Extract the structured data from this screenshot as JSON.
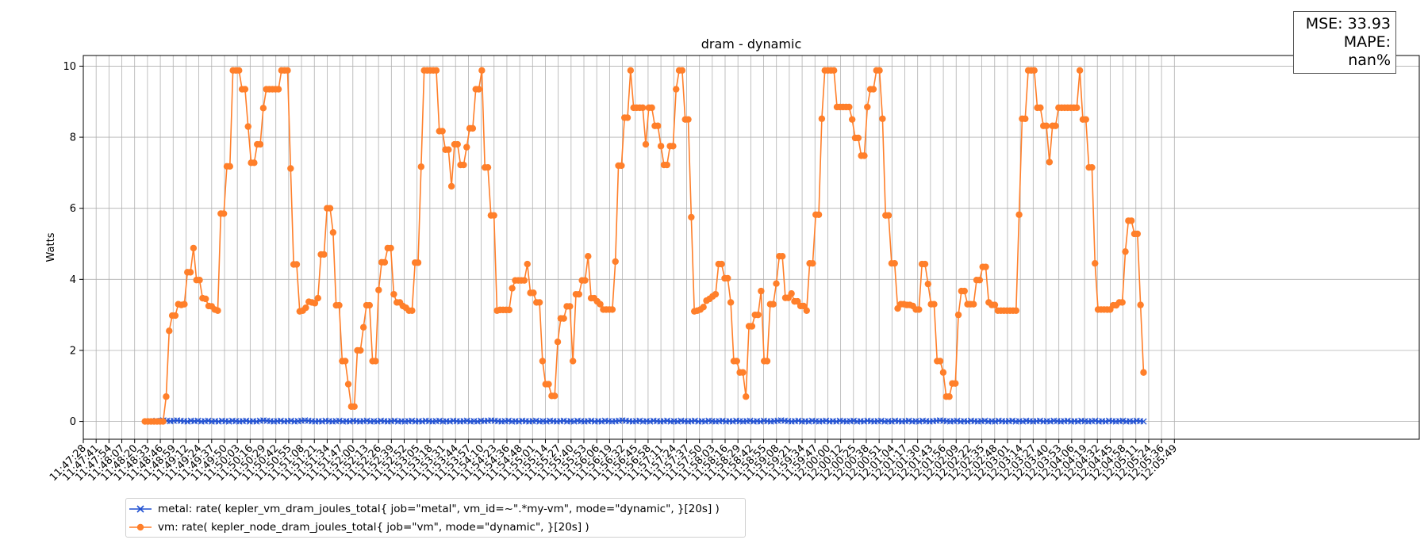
{
  "chart_data": {
    "type": "line",
    "title": "dram - dynamic",
    "xlabel": "",
    "ylabel": "Watts",
    "ylim": [
      -0.5,
      10.3
    ],
    "yticks": [
      0,
      2,
      4,
      6,
      8,
      10
    ],
    "grid": true,
    "legend_position": "bottom-left",
    "x_tick_labels": [
      "11:47:28",
      "11:47:41",
      "11:47:54",
      "11:48:07",
      "11:48:20",
      "11:48:33",
      "11:48:46",
      "11:48:59",
      "11:49:12",
      "11:49:24",
      "11:49:37",
      "11:49:50",
      "11:50:03",
      "11:50:16",
      "11:50:29",
      "11:50:42",
      "11:50:55",
      "11:51:08",
      "11:51:21",
      "11:51:34",
      "11:51:47",
      "11:52:00",
      "11:52:13",
      "11:52:26",
      "11:52:39",
      "11:52:52",
      "11:53:05",
      "11:53:18",
      "11:53:31",
      "11:53:44",
      "11:53:57",
      "11:54:10",
      "11:54:23",
      "11:54:36",
      "11:54:48",
      "11:55:01",
      "11:55:14",
      "11:55:27",
      "11:55:40",
      "11:55:53",
      "11:56:06",
      "11:56:19",
      "11:56:32",
      "11:56:45",
      "11:56:58",
      "11:57:11",
      "11:57:24",
      "11:57:37",
      "11:57:50",
      "11:58:03",
      "11:58:16",
      "11:58:29",
      "11:58:42",
      "11:58:55",
      "11:59:08",
      "11:59:21",
      "11:59:34",
      "11:59:47",
      "12:00:00",
      "12:00:12",
      "12:00:25",
      "12:00:38",
      "12:00:51",
      "12:01:04",
      "12:01:17",
      "12:01:30",
      "12:01:43",
      "12:01:56",
      "12:02:09",
      "12:02:22",
      "12:02:35",
      "12:02:48",
      "12:03:01",
      "12:03:14",
      "12:03:27",
      "12:03:40",
      "12:03:53",
      "12:04:06",
      "12:04:19",
      "12:04:32",
      "12:04:45",
      "12:04:58",
      "12:05:11",
      "12:05:24",
      "12:05:36",
      "12:05:49"
    ],
    "series": [
      {
        "name": "metal: rate( kepler_vm_dram_joules_total{ job=\"metal\", vm_id=~\".*my-vm\", mode=\"dynamic\", }[20s] )",
        "color": "#1f4fd1",
        "marker": "x",
        "start_tick": 5.7,
        "end_tick": 82.6,
        "values": [
          0.02,
          0.01,
          0.03,
          0.02,
          0.01,
          0.02,
          0.03,
          0.02,
          0.01,
          0.0,
          0.02,
          0.01,
          0.02,
          0.0,
          0.01,
          0.02,
          0.0,
          0.01,
          0.0,
          0.02,
          0.01,
          0.0,
          0.02,
          0.01,
          0.0,
          0.01,
          0.02,
          0.0,
          0.01,
          0.0,
          0.02,
          0.03,
          0.02,
          0.01,
          0.0,
          0.01,
          0.02,
          0.0,
          0.01,
          0.02,
          0.0,
          0.01,
          0.02,
          0.03,
          0.02,
          0.01,
          0.0,
          0.01,
          0.0,
          0.02,
          0.01,
          0.0,
          0.01,
          0.02,
          0.0,
          0.01,
          0.0,
          0.02,
          0.01,
          0.0,
          0.01,
          0.02,
          0.0,
          0.01,
          0.0,
          0.02,
          0.01,
          0.0,
          0.01,
          0.02,
          0.0,
          0.01,
          0.0,
          0.01,
          0.02,
          0.0,
          0.01,
          0.0,
          0.02,
          0.01,
          0.0,
          0.01,
          0.02,
          0.0,
          0.01,
          0.0,
          0.02,
          0.01,
          0.0,
          0.01,
          0.02,
          0.0,
          0.01,
          0.0,
          0.02,
          0.01,
          0.02,
          0.03,
          0.02,
          0.01,
          0.0,
          0.01,
          0.02,
          0.0,
          0.01,
          0.0,
          0.02,
          0.01,
          0.0,
          0.01,
          0.02,
          0.0,
          0.01,
          0.0,
          0.02,
          0.01,
          0.0,
          0.01,
          0.02,
          0.0,
          0.01,
          0.0,
          0.02,
          0.01,
          0.0,
          0.01,
          0.02,
          0.0,
          0.01,
          0.0,
          0.02,
          0.01,
          0.0,
          0.01,
          0.02,
          0.03,
          0.02,
          0.01,
          0.0,
          0.01,
          0.02,
          0.0,
          0.01,
          0.0,
          0.02,
          0.01,
          0.0,
          0.01,
          0.02,
          0.0,
          0.01,
          0.0,
          0.02,
          0.01,
          0.0,
          0.01,
          0.02,
          0.0,
          0.01,
          0.0,
          0.02,
          0.01,
          0.0,
          0.01,
          0.02,
          0.0,
          0.01,
          0.0,
          0.02,
          0.01,
          0.0,
          0.01,
          0.02,
          0.0,
          0.01,
          0.0,
          0.02,
          0.01,
          0.0,
          0.01,
          0.02,
          0.03,
          0.02,
          0.01,
          0.0,
          0.01,
          0.02,
          0.0,
          0.01,
          0.0,
          0.02,
          0.01,
          0.0,
          0.01,
          0.02,
          0.0,
          0.01,
          0.0,
          0.02,
          0.01,
          0.0,
          0.01,
          0.02,
          0.0,
          0.01,
          0.0,
          0.02,
          0.01,
          0.0,
          0.01,
          0.02,
          0.0,
          0.01,
          0.0,
          0.02,
          0.01,
          0.0,
          0.01,
          0.02,
          0.0,
          0.01,
          0.0,
          0.02,
          0.01,
          0.0,
          0.01,
          0.02,
          0.03,
          0.02,
          0.01,
          0.0,
          0.01,
          0.02,
          0.0,
          0.01,
          0.0,
          0.02,
          0.01,
          0.0,
          0.01,
          0.02,
          0.0,
          0.01,
          0.0,
          0.02,
          0.01,
          0.0,
          0.01,
          0.02,
          0.0,
          0.01,
          0.0,
          0.02,
          0.01,
          0.0,
          0.01,
          0.02,
          0.0,
          0.01,
          0.0,
          0.02,
          0.01,
          0.0,
          0.01,
          0.02,
          0.0,
          0.01,
          0.0,
          0.02,
          0.01,
          0.0,
          0.01,
          0.02,
          0.0,
          0.01,
          0.0,
          0.02,
          0.01,
          0.0,
          0.01,
          0.02,
          0.0,
          0.01,
          0.0,
          0.02,
          0.01,
          0.0
        ]
      },
      {
        "name": "vm: rate( kepler_node_dram_joules_total{ job=\"vm\", mode=\"dynamic\", }[20s] )",
        "color": "#ff7f2a",
        "marker": "o",
        "start_tick": 4.8,
        "end_tick": 82.6,
        "values": [
          0,
          0,
          0,
          0,
          0,
          0,
          0,
          0.7,
          2.55,
          2.98,
          2.98,
          3.3,
          3.28,
          3.3,
          4.2,
          4.2,
          4.88,
          3.98,
          3.98,
          3.47,
          3.45,
          3.25,
          3.24,
          3.15,
          3.12,
          5.85,
          5.85,
          7.18,
          7.18,
          9.88,
          9.88,
          9.88,
          9.35,
          9.35,
          8.3,
          7.28,
          7.28,
          7.8,
          7.8,
          8.82,
          9.35,
          9.35,
          9.35,
          9.35,
          9.35,
          9.88,
          9.88,
          9.88,
          7.12,
          4.42,
          4.42,
          3.1,
          3.12,
          3.2,
          3.37,
          3.35,
          3.33,
          3.47,
          4.7,
          4.7,
          6.0,
          6.0,
          5.32,
          3.27,
          3.27,
          1.7,
          1.7,
          1.05,
          0.42,
          0.42,
          2.0,
          2.0,
          2.65,
          3.27,
          3.27,
          1.7,
          1.7,
          3.7,
          4.48,
          4.48,
          4.88,
          4.88,
          3.58,
          3.35,
          3.35,
          3.25,
          3.2,
          3.12,
          3.12,
          4.47,
          4.47,
          7.17,
          9.88,
          9.88,
          9.88,
          9.88,
          9.88,
          8.17,
          8.17,
          7.65,
          7.65,
          6.62,
          7.8,
          7.8,
          7.22,
          7.22,
          7.72,
          8.25,
          8.25,
          9.35,
          9.35,
          9.88,
          7.15,
          7.15,
          5.8,
          5.8,
          3.12,
          3.14,
          3.14,
          3.14,
          3.14,
          3.75,
          3.97,
          3.97,
          3.97,
          3.97,
          4.43,
          3.62,
          3.62,
          3.35,
          3.35,
          1.7,
          1.05,
          1.05,
          0.72,
          0.72,
          2.24,
          2.9,
          2.9,
          3.24,
          3.24,
          1.7,
          3.58,
          3.58,
          3.97,
          3.97,
          4.65,
          3.47,
          3.47,
          3.38,
          3.3,
          3.15,
          3.15,
          3.15,
          3.15,
          4.5,
          7.2,
          7.2,
          8.55,
          8.55,
          9.88,
          8.83,
          8.83,
          8.83,
          8.83,
          7.8,
          8.83,
          8.83,
          8.32,
          8.32,
          7.75,
          7.22,
          7.22,
          7.75,
          7.75,
          9.35,
          9.88,
          9.88,
          8.5,
          8.5,
          5.75,
          3.1,
          3.12,
          3.15,
          3.22,
          3.4,
          3.45,
          3.52,
          3.58,
          4.43,
          4.43,
          4.03,
          4.03,
          3.35,
          1.7,
          1.7,
          1.38,
          1.38,
          0.7,
          2.68,
          2.68,
          3.0,
          3.0,
          3.67,
          1.7,
          1.7,
          3.3,
          3.3,
          3.88,
          4.65,
          4.65,
          3.48,
          3.48,
          3.6,
          3.38,
          3.38,
          3.25,
          3.25,
          3.12,
          4.45,
          4.45,
          5.82,
          5.82,
          8.52,
          9.88,
          9.88,
          9.88,
          9.88,
          8.85,
          8.85,
          8.85,
          8.85,
          8.85,
          8.5,
          7.98,
          7.98,
          7.48,
          7.48,
          8.85,
          9.35,
          9.35,
          9.88,
          9.88,
          8.52,
          5.8,
          5.8,
          4.45,
          4.45,
          3.18,
          3.3,
          3.3,
          3.28,
          3.28,
          3.25,
          3.15,
          3.15,
          4.43,
          4.43,
          3.87,
          3.3,
          3.3,
          1.7,
          1.7,
          1.38,
          0.7,
          0.7,
          1.07,
          1.07,
          3.0,
          3.67,
          3.67,
          3.3,
          3.3,
          3.3,
          3.98,
          3.98,
          4.35,
          4.35,
          3.35,
          3.28,
          3.28,
          3.12,
          3.12,
          3.12,
          3.12,
          3.12,
          3.12,
          3.12,
          5.82,
          8.52,
          8.52,
          9.88,
          9.88,
          9.88,
          8.83,
          8.83,
          8.32,
          8.32,
          7.3,
          8.32,
          8.32,
          8.83,
          8.83,
          8.83,
          8.83,
          8.83,
          8.83,
          8.83,
          9.88,
          8.5,
          8.5,
          7.15,
          7.15,
          4.45,
          3.15,
          3.15,
          3.15,
          3.15,
          3.15,
          3.27,
          3.27,
          3.35,
          3.35,
          4.78,
          5.65,
          5.65,
          5.28,
          5.28,
          3.28,
          1.38
        ]
      }
    ],
    "annotations": {
      "mse_text": "MSE: 33.93",
      "mape_text": "MAPE: nan%"
    }
  }
}
